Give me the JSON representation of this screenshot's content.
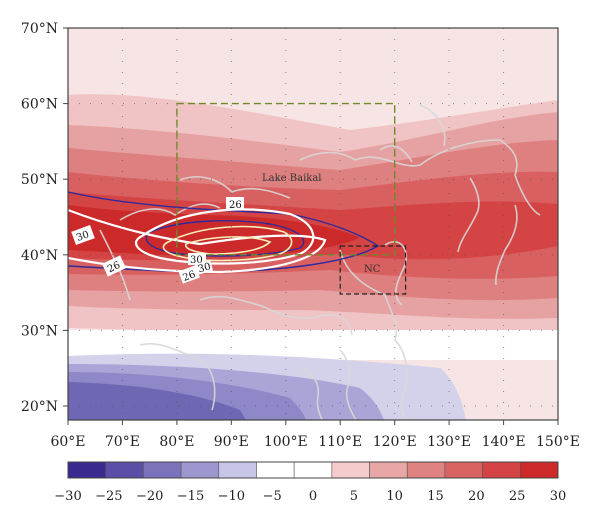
{
  "map": {
    "lon_labels": [
      "60°E",
      "70°E",
      "80°E",
      "90°E",
      "100°E",
      "110°E",
      "120°E",
      "130°E",
      "140°E",
      "150°E"
    ],
    "lat_labels": [
      "70°N",
      "60°N",
      "50°N",
      "40°N",
      "30°N",
      "20°N"
    ],
    "annotations": {
      "lake": "Lake Baikal",
      "region": "NC"
    },
    "contour_labels": [
      "26",
      "30",
      "26",
      "30",
      "30",
      "26"
    ],
    "colorbar": {
      "ticks": [
        "−30",
        "−25",
        "−20",
        "−15",
        "−10",
        "−5",
        "0",
        "5",
        "10",
        "15",
        "20",
        "25",
        "30"
      ],
      "colors": [
        "#3a2a8f",
        "#5a4ea6",
        "#7a72bb",
        "#9d97cf",
        "#c8c6e6",
        "#ffffff",
        "#ffffff",
        "#f4cccc",
        "#e8a6a6",
        "#de8282",
        "#d96262",
        "#d44444",
        "#cc2a2a"
      ]
    },
    "colors": {
      "contour_white": "#ffffff",
      "contour_blue": "#2e2a9c",
      "contour_cream": "#f3efb8",
      "box_green": "#6d8a2a",
      "box_black": "#222222",
      "coast": "#d8d8d8"
    }
  }
}
